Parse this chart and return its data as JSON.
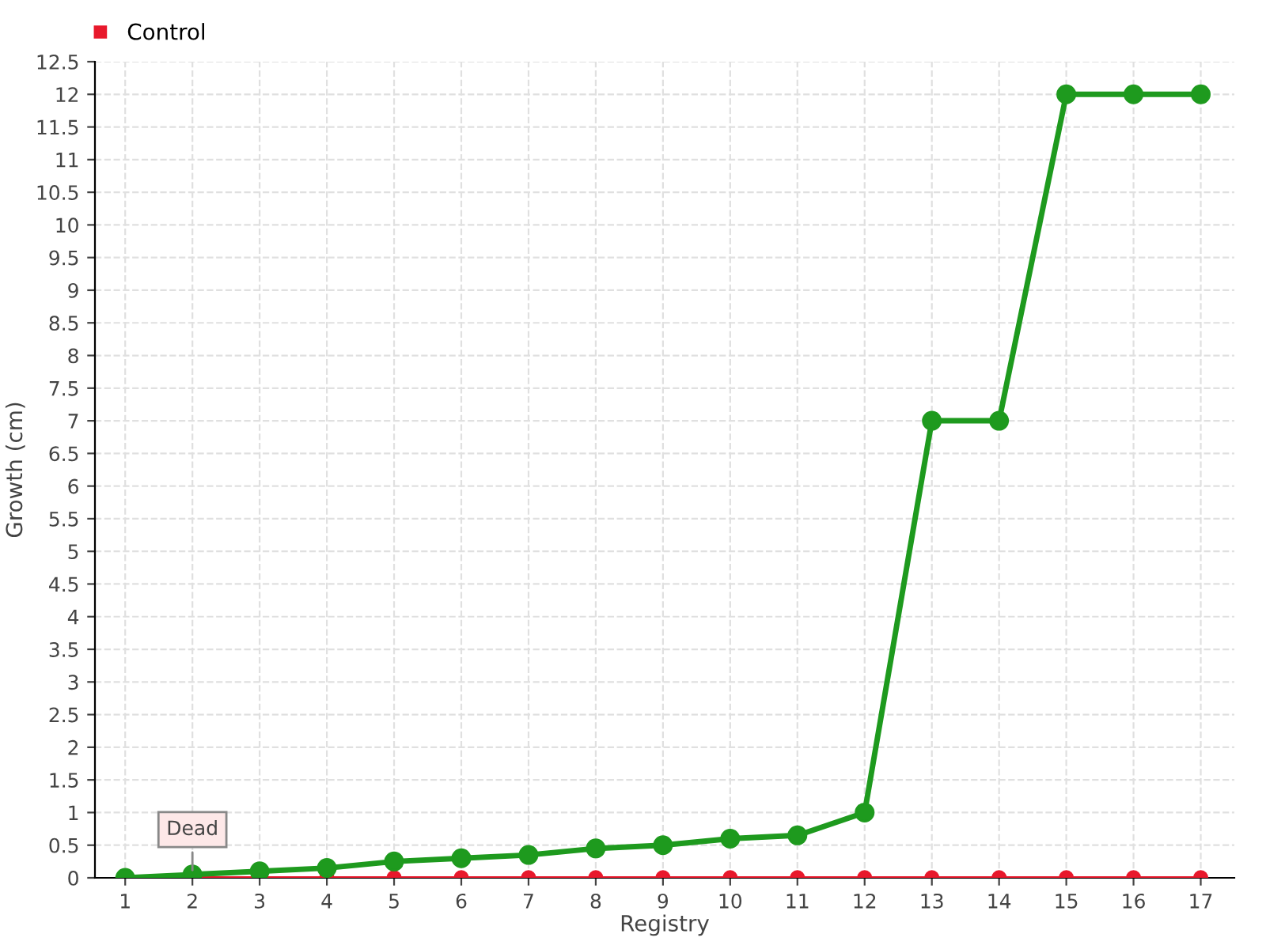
{
  "chart_data": {
    "type": "line",
    "xlabel": "Registry",
    "ylabel": "Growth (cm)",
    "categories": [
      "1",
      "2",
      "3",
      "4",
      "5",
      "6",
      "7",
      "8",
      "9",
      "10",
      "11",
      "12",
      "13",
      "14",
      "15",
      "16",
      "17"
    ],
    "series": [
      {
        "color": "#1e9a1e",
        "values": [
          0,
          0.05,
          0.1,
          0.15,
          0.25,
          0.3,
          0.35,
          0.45,
          0.5,
          0.6,
          0.65,
          1,
          7,
          7,
          12,
          12,
          12
        ]
      },
      {
        "name": "Control",
        "color": "#e8192c",
        "values": [
          0,
          0,
          0,
          0,
          0,
          0,
          0,
          0,
          0,
          0,
          0,
          0,
          0,
          0,
          0,
          0,
          0
        ]
      }
    ],
    "ylim": [
      0,
      12.5
    ],
    "yticks": [
      0,
      0.5,
      1,
      1.5,
      2,
      2.5,
      3,
      3.5,
      4,
      4.5,
      5,
      5.5,
      6,
      6.5,
      7,
      7.5,
      8,
      8.5,
      9,
      9.5,
      10,
      10.5,
      11,
      11.5,
      12,
      12.5
    ],
    "annotations": [
      {
        "text": "Dead",
        "x": "2",
        "y": 0.05
      }
    ],
    "grid": true,
    "legend": "top left",
    "marker": "circle",
    "line_style": "solid"
  }
}
